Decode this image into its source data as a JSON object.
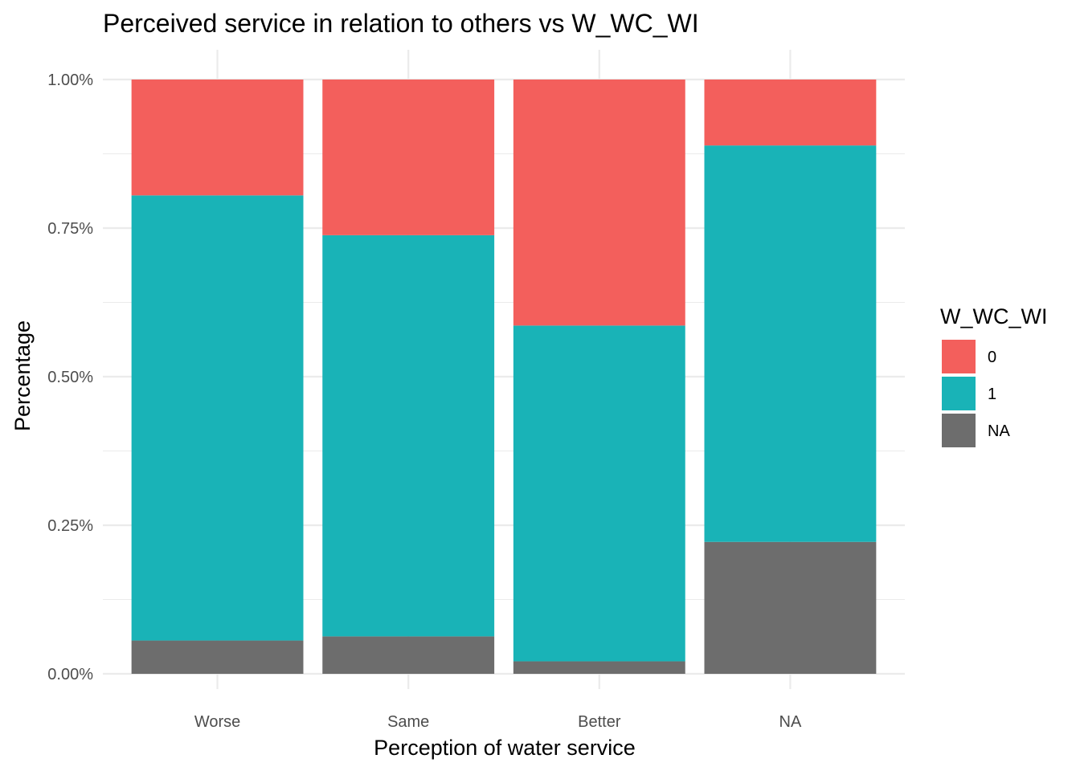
{
  "chart_data": {
    "type": "bar",
    "stacked": true,
    "title": "Perceived service in relation to others vs W_WC_WI",
    "xlabel": "Perception of water service",
    "ylabel": "Percentage",
    "categories": [
      "Worse",
      "Same",
      "Better",
      "NA"
    ],
    "ylim": [
      0,
      1
    ],
    "y_ticks": [
      {
        "value": 0,
        "label": "0.00%"
      },
      {
        "value": 0.25,
        "label": "0.25%"
      },
      {
        "value": 0.5,
        "label": "0.50%"
      },
      {
        "value": 0.75,
        "label": "0.75%"
      },
      {
        "value": 1,
        "label": "1.00%"
      }
    ],
    "legend": {
      "title": "W_WC_WI",
      "position": "right"
    },
    "series": [
      {
        "name": "0",
        "color": "#F35F5C",
        "values": [
          0.195,
          0.262,
          0.414,
          0.111
        ]
      },
      {
        "name": "1",
        "color": "#19B3B7",
        "values": [
          0.749,
          0.675,
          0.565,
          0.667
        ]
      },
      {
        "name": "NA",
        "color": "#6D6D6D",
        "values": [
          0.056,
          0.063,
          0.021,
          0.222
        ]
      }
    ],
    "stack_order_bottom_to_top": [
      "NA",
      "1",
      "0"
    ],
    "grid": true
  }
}
